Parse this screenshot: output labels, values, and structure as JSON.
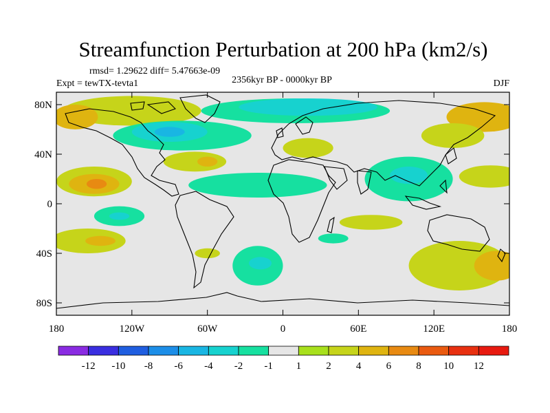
{
  "chart_data": {
    "type": "heatmap",
    "title": "Streamfunction Perturbation at 200 hPa (km2/s)",
    "stats": "rmsd= 1.29622 diff= 5.47663e-09",
    "experiment": "Expt = tewTX-tevta1",
    "period": "2356kyr BP - 0000kyr BP",
    "season": "DJF",
    "x_ticks": [
      {
        "value": -180,
        "label": "180"
      },
      {
        "value": -120,
        "label": "120W"
      },
      {
        "value": -60,
        "label": "60W"
      },
      {
        "value": 0,
        "label": "0"
      },
      {
        "value": 60,
        "label": "60E"
      },
      {
        "value": 120,
        "label": "120E"
      },
      {
        "value": 180,
        "label": "180"
      }
    ],
    "y_ticks": [
      {
        "value": 80,
        "label": "80N"
      },
      {
        "value": 40,
        "label": "40N"
      },
      {
        "value": 0,
        "label": "0"
      },
      {
        "value": -40,
        "label": "40S"
      },
      {
        "value": -80,
        "label": "80S"
      }
    ],
    "xlim": [
      -180,
      180
    ],
    "ylim": [
      -90,
      90
    ],
    "colorbar": {
      "levels": [
        "-12",
        "-10",
        "-8",
        "-6",
        "-4",
        "-2",
        "-1",
        "1",
        "2",
        "4",
        "6",
        "8",
        "10",
        "12"
      ],
      "colors": [
        "#8a2be2",
        "#3a2ee0",
        "#1f5ee0",
        "#1c8ee8",
        "#19b6e3",
        "#17d2cf",
        "#16e0a0",
        "#e6e6e6",
        "#a8e01c",
        "#c6d41a",
        "#dfb410",
        "#e88a12",
        "#ea5a10",
        "#e83010",
        "#e81a10"
      ]
    },
    "fields": [
      {
        "lon": -120,
        "lat": 75,
        "rx": 55,
        "ry": 12,
        "level": "2"
      },
      {
        "lon": -165,
        "lat": 70,
        "rx": 18,
        "ry": 10,
        "level": "4"
      },
      {
        "lon": -80,
        "lat": 55,
        "rx": 55,
        "ry": 12,
        "level": "-1"
      },
      {
        "lon": -90,
        "lat": 58,
        "rx": 30,
        "ry": 8,
        "level": "-2"
      },
      {
        "lon": -90,
        "lat": 58,
        "rx": 12,
        "ry": 4,
        "level": "-4"
      },
      {
        "lon": 10,
        "lat": 75,
        "rx": 75,
        "ry": 10,
        "level": "-1"
      },
      {
        "lon": 20,
        "lat": 78,
        "rx": 55,
        "ry": 7,
        "level": "-2"
      },
      {
        "lon": 20,
        "lat": 45,
        "rx": 20,
        "ry": 8,
        "level": "2"
      },
      {
        "lon": 160,
        "lat": 70,
        "rx": 30,
        "ry": 12,
        "level": "4"
      },
      {
        "lon": 135,
        "lat": 55,
        "rx": 25,
        "ry": 10,
        "level": "2"
      },
      {
        "lon": -70,
        "lat": 34,
        "rx": 25,
        "ry": 8,
        "level": "2"
      },
      {
        "lon": -60,
        "lat": 34,
        "rx": 8,
        "ry": 4,
        "level": "4"
      },
      {
        "lon": -150,
        "lat": 18,
        "rx": 30,
        "ry": 12,
        "level": "2"
      },
      {
        "lon": -150,
        "lat": 16,
        "rx": 20,
        "ry": 8,
        "level": "4"
      },
      {
        "lon": -148,
        "lat": 16,
        "rx": 8,
        "ry": 4,
        "level": "6"
      },
      {
        "lon": -20,
        "lat": 15,
        "rx": 55,
        "ry": 10,
        "level": "-1"
      },
      {
        "lon": 100,
        "lat": 20,
        "rx": 35,
        "ry": 18,
        "level": "-1"
      },
      {
        "lon": 100,
        "lat": 23,
        "rx": 15,
        "ry": 7,
        "level": "-2"
      },
      {
        "lon": 165,
        "lat": 22,
        "rx": 25,
        "ry": 9,
        "level": "2"
      },
      {
        "lon": -130,
        "lat": -10,
        "rx": 20,
        "ry": 8,
        "level": "-1"
      },
      {
        "lon": -130,
        "lat": -10,
        "rx": 8,
        "ry": 3,
        "level": "-2"
      },
      {
        "lon": 70,
        "lat": -15,
        "rx": 25,
        "ry": 6,
        "level": "2"
      },
      {
        "lon": 40,
        "lat": -28,
        "rx": 12,
        "ry": 4,
        "level": "-1"
      },
      {
        "lon": -155,
        "lat": -30,
        "rx": 30,
        "ry": 10,
        "level": "2"
      },
      {
        "lon": -145,
        "lat": -30,
        "rx": 12,
        "ry": 4,
        "level": "4"
      },
      {
        "lon": -20,
        "lat": -50,
        "rx": 20,
        "ry": 16,
        "level": "-1"
      },
      {
        "lon": -18,
        "lat": -48,
        "rx": 9,
        "ry": 5,
        "level": "-2"
      },
      {
        "lon": -60,
        "lat": -40,
        "rx": 10,
        "ry": 4,
        "level": "2"
      },
      {
        "lon": 140,
        "lat": -50,
        "rx": 40,
        "ry": 20,
        "level": "2"
      },
      {
        "lon": 170,
        "lat": -50,
        "rx": 18,
        "ry": 12,
        "level": "4"
      }
    ]
  }
}
